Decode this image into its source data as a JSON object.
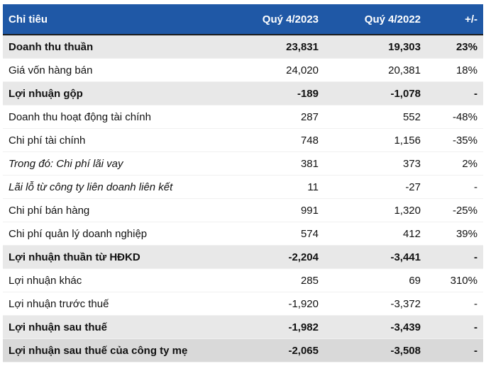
{
  "table": {
    "header": [
      "Chỉ tiêu",
      "Quý 4/2023",
      "Quý 4/2022",
      "+/-"
    ],
    "rows": [
      [
        "Doanh thu thuần",
        "23,831",
        "19,303",
        "23%"
      ],
      [
        "Giá vốn hàng bán",
        "24,020",
        "20,381",
        "18%"
      ],
      [
        "Lợi nhuận gộp",
        "-189",
        "-1,078",
        "-"
      ],
      [
        "Doanh thu hoạt động tài chính",
        "287",
        "552",
        "-48%"
      ],
      [
        "Chi phí tài chính",
        "748",
        "1,156",
        "-35%"
      ],
      [
        "Trong đó: Chi phí lãi vay",
        "381",
        "373",
        "2%"
      ],
      [
        "Lãi lỗ từ công ty liên doanh liên kết",
        "11",
        "-27",
        "-"
      ],
      [
        "Chi phí bán hàng",
        "991",
        "1,320",
        "-25%"
      ],
      [
        "Chi phí quản lý doanh nghiệp",
        "574",
        "412",
        "39%"
      ],
      [
        "Lợi nhuận thuần từ HĐKD",
        "-2,204",
        "-3,441",
        "-"
      ],
      [
        "Lợi nhuận khác",
        "285",
        "69",
        "310%"
      ],
      [
        "Lợi nhuận trước thuế",
        "-1,920",
        "-3,372",
        "-"
      ],
      [
        "Lợi nhuận sau thuế",
        "-1,982",
        "-3,439",
        "-"
      ],
      [
        "Lợi nhuận sau thuế của công ty mẹ",
        "-2,065",
        "-3,508",
        "-"
      ]
    ]
  }
}
